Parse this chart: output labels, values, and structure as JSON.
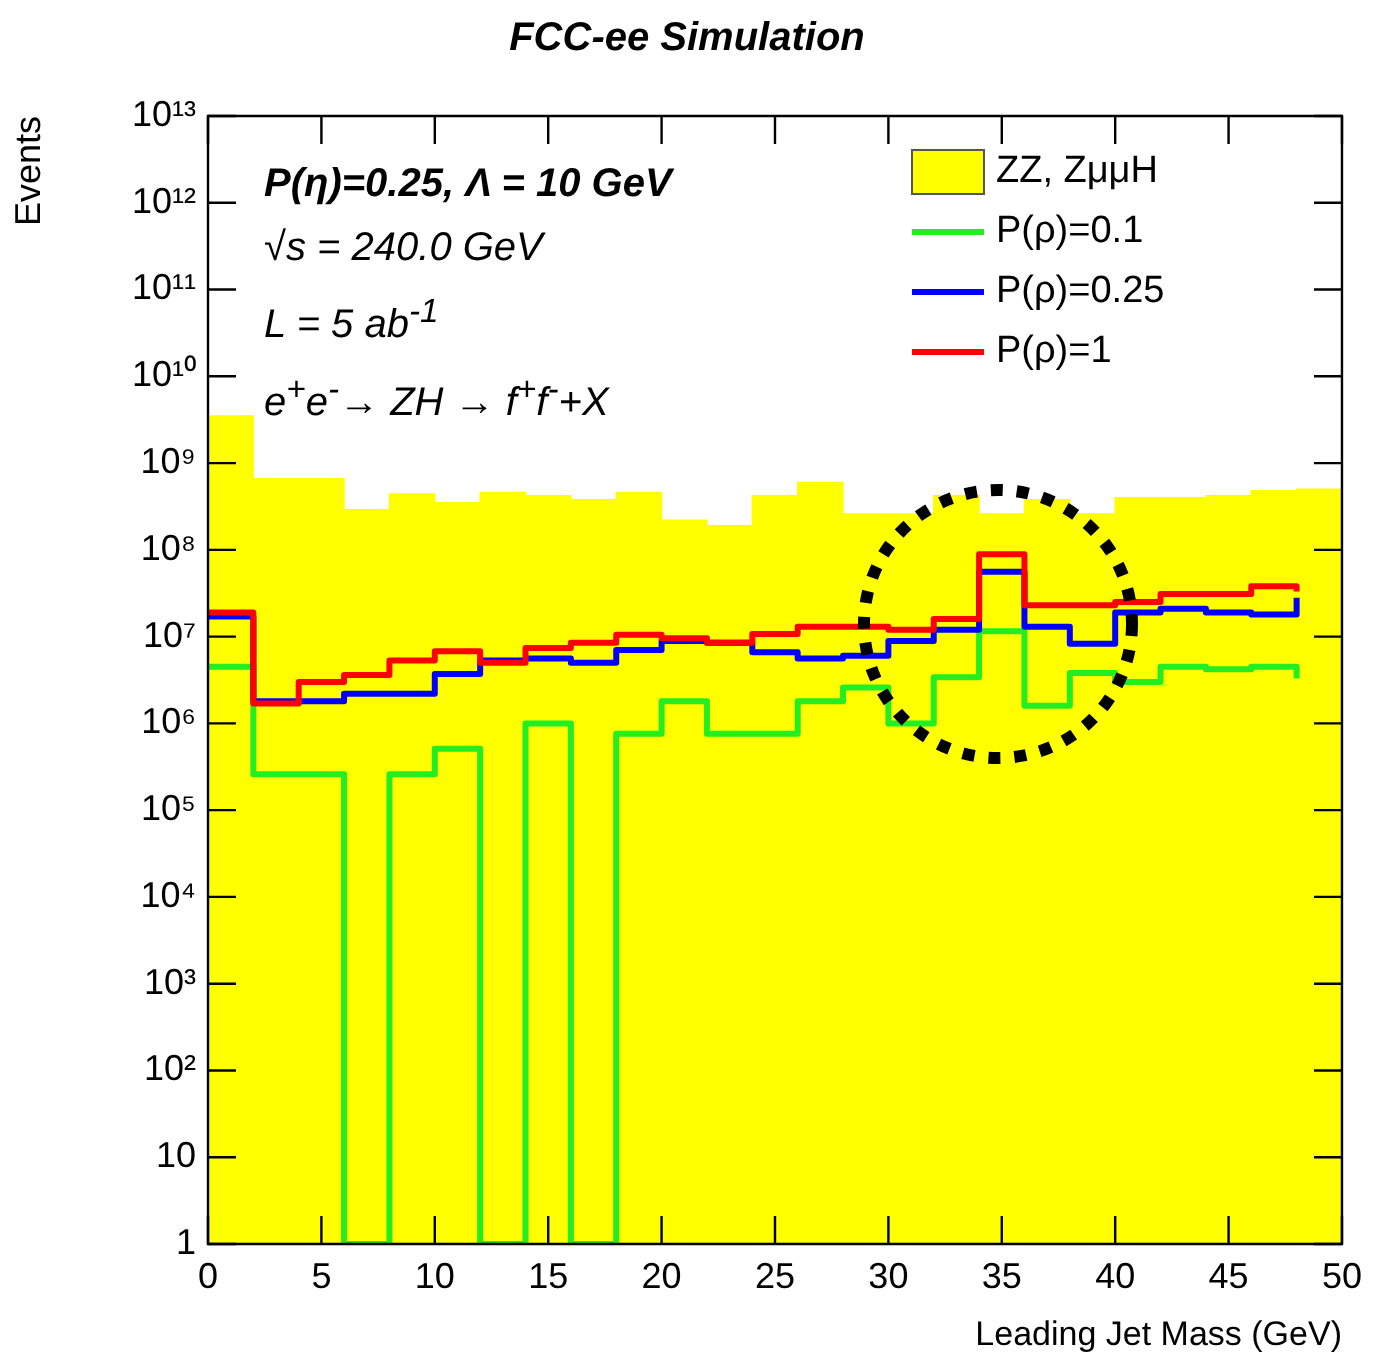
{
  "chart_data": {
    "type": "histogram",
    "title": "FCC-ee Simulation",
    "xlabel": "Leading Jet Mass (GeV)",
    "ylabel": "Events",
    "bins": [
      0,
      2,
      4,
      6,
      8,
      10,
      12,
      14,
      16,
      18,
      20,
      22,
      24,
      26,
      28,
      30,
      32,
      34,
      36,
      38,
      40,
      42,
      44,
      46,
      48,
      50
    ],
    "series": [
      {
        "name": "ZZ, ZμμH",
        "color": "#ffff00",
        "values": [
          3500000000.0,
          660000000.0,
          660000000.0,
          290000000.0,
          440000000.0,
          350000000.0,
          460000000.0,
          420000000.0,
          380000000.0,
          460000000.0,
          220000000.0,
          190000000.0,
          420000000.0,
          600000000.0,
          260000000.0,
          260000000.0,
          420000000.0,
          260000000.0,
          380000000.0,
          260000000.0,
          400000000.0,
          400000000.0,
          420000000.0,
          480000000.0,
          500000000.0
        ]
      },
      {
        "name": "P(ρ)=0.1",
        "type": "step",
        "color": "#22ee22",
        "x": [
          0,
          2,
          4,
          6,
          8,
          10,
          12,
          14,
          16,
          18,
          20,
          22,
          24,
          26,
          28,
          30,
          32,
          34,
          36,
          38,
          40,
          42,
          44,
          46,
          48
        ],
        "values": [
          4500000.0,
          260000.0,
          260000.0,
          1,
          260000.0,
          510000.0,
          1,
          1000000.0,
          1,
          760000.0,
          1800000.0,
          760000.0,
          760000.0,
          1800000.0,
          2600000.0,
          1000000.0,
          3400000.0,
          11500000.0,
          1600000.0,
          3800000.0,
          3000000.0,
          4500000.0,
          4200000.0,
          4500000.0,
          3300000.0
        ]
      },
      {
        "name": "P(ρ)=0.25",
        "type": "step",
        "color": "#0000ff",
        "x": [
          0,
          2,
          4,
          6,
          8,
          10,
          12,
          14,
          16,
          18,
          20,
          22,
          24,
          26,
          28,
          30,
          32,
          34,
          36,
          38,
          40,
          42,
          44,
          46,
          48
        ],
        "values": [
          17000000.0,
          1800000.0,
          1800000.0,
          2200000.0,
          2200000.0,
          3700000.0,
          5300000.0,
          5600000.0,
          5000000.0,
          7000000.0,
          8900000.0,
          8500000.0,
          6600000.0,
          5600000.0,
          6000000.0,
          8900000.0,
          12000000.0,
          56000000.0,
          13000000.0,
          8300000.0,
          19000000.0,
          21000000.0,
          19000000.0,
          18000000.0,
          28000000.0
        ]
      },
      {
        "name": "P(ρ)=1",
        "type": "step",
        "color": "#ff0000",
        "x": [
          0,
          2,
          4,
          6,
          8,
          10,
          12,
          14,
          16,
          18,
          20,
          22,
          24,
          26,
          28,
          30,
          32,
          34,
          36,
          38,
          40,
          42,
          44,
          46,
          48
        ],
        "values": [
          19000000.0,
          1700000.0,
          3000000.0,
          3600000.0,
          5300000.0,
          6800000.0,
          5000000.0,
          7400000.0,
          8500000.0,
          10500000.0,
          9600000.0,
          8500000.0,
          10700000.0,
          13000000.0,
          13000000.0,
          12000000.0,
          16000000.0,
          89000000.0,
          23000000.0,
          23000000.0,
          25000000.0,
          31000000.0,
          31000000.0,
          38000000.0,
          33000000.0
        ]
      }
    ],
    "xlim": [
      0,
      50
    ],
    "xticks": [
      0,
      5,
      10,
      15,
      20,
      25,
      30,
      35,
      40,
      45,
      50
    ],
    "ylim": [
      1,
      10000000000000.0
    ],
    "log": true,
    "yticks": [
      {
        "value": 1,
        "label": "1"
      },
      {
        "value": 10,
        "label": "10"
      },
      {
        "value": 100,
        "label": "10²"
      },
      {
        "value": 1000,
        "label": "10³"
      },
      {
        "value": 10000.0,
        "label": "10⁴"
      },
      {
        "value": 100000.0,
        "label": "10⁵"
      },
      {
        "value": 1000000.0,
        "label": "10⁶"
      },
      {
        "value": 10000000.0,
        "label": "10⁷"
      },
      {
        "value": 100000000.0,
        "label": "10⁸"
      },
      {
        "value": 1000000000.0,
        "label": "10⁹"
      },
      {
        "value": 10000000000.0,
        "label": "10¹⁰"
      },
      {
        "value": 100000000000.0,
        "label": "10¹¹"
      },
      {
        "value": 1000000000000.0,
        "label": "10¹²"
      },
      {
        "value": 10000000000000.0,
        "label": "10¹³"
      }
    ],
    "legend": "top right",
    "grid": false,
    "annotations": [
      "P(η)=0.25,   Λ = 10 GeV",
      "√s = 240.0 GeV",
      "L = 5 ab$^{-1}$",
      "e$^{+}$e$^{-}$→ ZH → f$^{+}$f$^{-}$+X"
    ]
  }
}
